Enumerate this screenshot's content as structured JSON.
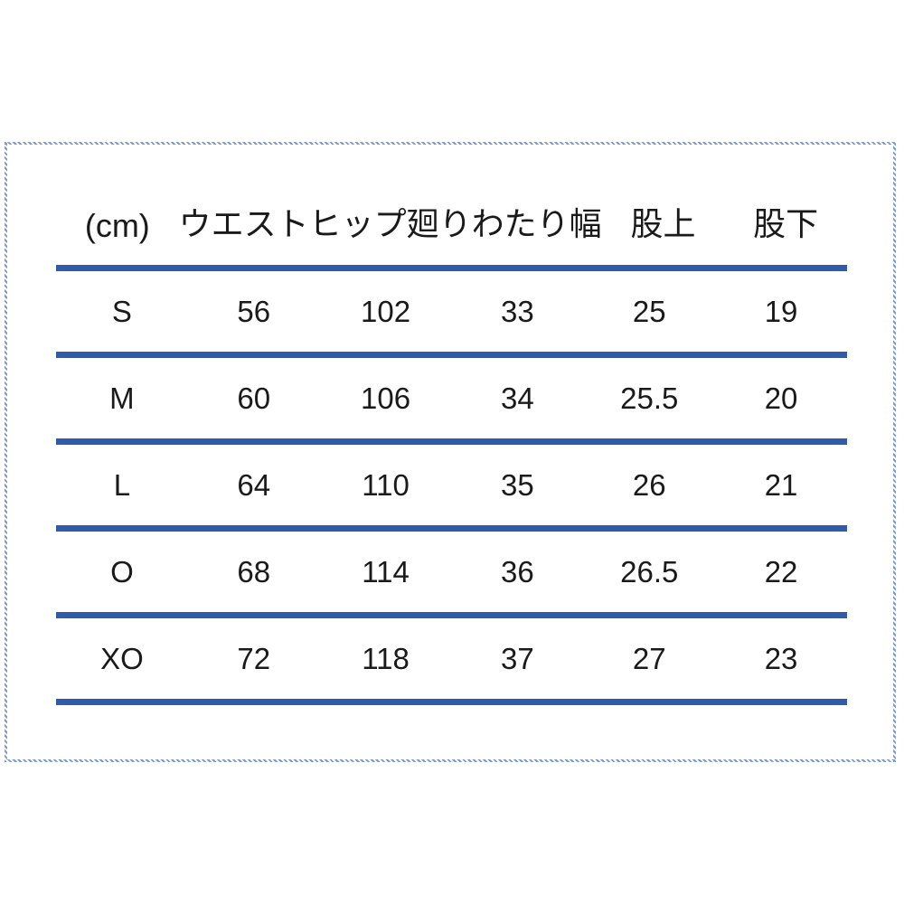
{
  "colors": {
    "rule_blue": "#2e5ca8",
    "frame_blue": "#7b97cd",
    "text": "#1a1a1a",
    "background": "#ffffff"
  },
  "chart_data": {
    "type": "table",
    "title": "",
    "unit_label": "(cm)",
    "columns": [
      "ウエスト",
      "ヒップ廻り",
      "わたり幅",
      "股上",
      "股下"
    ],
    "rows": [
      {
        "size": "S",
        "values": [
          "56",
          "102",
          "33",
          "25",
          "19"
        ]
      },
      {
        "size": "M",
        "values": [
          "60",
          "106",
          "34",
          "25.5",
          "20"
        ]
      },
      {
        "size": "L",
        "values": [
          "64",
          "110",
          "35",
          "26",
          "21"
        ]
      },
      {
        "size": "O",
        "values": [
          "68",
          "114",
          "36",
          "26.5",
          "22"
        ]
      },
      {
        "size": "XO",
        "values": [
          "72",
          "118",
          "37",
          "27",
          "23"
        ]
      }
    ],
    "layout": {
      "grid": "horizontal-rules-only",
      "rule_color": "#2e5ca8",
      "frame": "wavy-blue-border"
    }
  }
}
